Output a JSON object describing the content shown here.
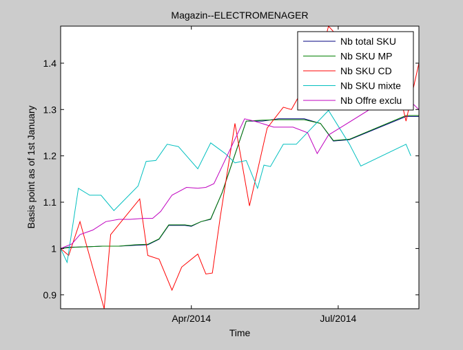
{
  "chart_data": {
    "type": "line",
    "title": "Magazin--ELECTROMENAGER",
    "xlabel": "Time",
    "ylabel": "Basis point as of 1st January",
    "ylim": [
      0.87,
      1.48
    ],
    "yticks": [
      0.9,
      1,
      1.1,
      1.2,
      1.3,
      1.4
    ],
    "ytick_labels": [
      "0.9",
      "1",
      "1.1",
      "1.2",
      "1.3",
      "1.4"
    ],
    "xlim": [
      "2014-01-10",
      "2014-08-20"
    ],
    "xticks": [
      {
        "date": "2014-04-01",
        "label": "Apr/2014"
      },
      {
        "date": "2014-07-01",
        "label": "Jul/2014"
      }
    ],
    "grid": false,
    "legend": "top-right",
    "series": [
      {
        "name": "Nb total SKU",
        "color": "#00007f",
        "points": [
          [
            "2014-01-10",
            1.0
          ],
          [
            "2014-01-15",
            1.003
          ],
          [
            "2014-01-20",
            1.003
          ],
          [
            "2014-01-28",
            1.004
          ],
          [
            "2014-02-05",
            1.005
          ],
          [
            "2014-02-15",
            1.005
          ],
          [
            "2014-02-25",
            1.007
          ],
          [
            "2014-03-05",
            1.008
          ],
          [
            "2014-03-12",
            1.02
          ],
          [
            "2014-03-18",
            1.05
          ],
          [
            "2014-03-28",
            1.05
          ],
          [
            "2014-04-01",
            1.048
          ],
          [
            "2014-04-07",
            1.058
          ],
          [
            "2014-04-13",
            1.063
          ],
          [
            "2014-04-20",
            1.12
          ],
          [
            "2014-05-05",
            1.275
          ],
          [
            "2014-05-15",
            1.275
          ],
          [
            "2014-05-25",
            1.28
          ],
          [
            "2014-06-10",
            1.28
          ],
          [
            "2014-06-20",
            1.27
          ],
          [
            "2014-06-28",
            1.232
          ],
          [
            "2014-07-08",
            1.235
          ],
          [
            "2014-08-12",
            1.285
          ],
          [
            "2014-08-20",
            1.285
          ]
        ]
      },
      {
        "name": "Nb SKU MP",
        "color": "#007f00",
        "points": [
          [
            "2014-01-10",
            1.0
          ],
          [
            "2014-01-15",
            1.002
          ],
          [
            "2014-01-20",
            1.003
          ],
          [
            "2014-01-28",
            1.004
          ],
          [
            "2014-02-05",
            1.005
          ],
          [
            "2014-02-15",
            1.005
          ],
          [
            "2014-02-25",
            1.008
          ],
          [
            "2014-03-05",
            1.009
          ],
          [
            "2014-03-12",
            1.021
          ],
          [
            "2014-03-18",
            1.051
          ],
          [
            "2014-03-28",
            1.051
          ],
          [
            "2014-04-01",
            1.049
          ],
          [
            "2014-04-07",
            1.058
          ],
          [
            "2014-04-13",
            1.064
          ],
          [
            "2014-04-20",
            1.12
          ],
          [
            "2014-05-05",
            1.275
          ],
          [
            "2014-05-15",
            1.277
          ],
          [
            "2014-05-25",
            1.278
          ],
          [
            "2014-06-10",
            1.278
          ],
          [
            "2014-06-20",
            1.27
          ],
          [
            "2014-06-28",
            1.233
          ],
          [
            "2014-07-08",
            1.236
          ],
          [
            "2014-08-12",
            1.287
          ],
          [
            "2014-08-20",
            1.287
          ]
        ]
      },
      {
        "name": "Nb SKU CD",
        "color": "#ff0000",
        "points": [
          [
            "2014-01-10",
            1.0
          ],
          [
            "2014-01-15",
            0.985
          ],
          [
            "2014-01-22",
            1.058
          ],
          [
            "2014-02-06",
            0.87
          ],
          [
            "2014-02-10",
            1.03
          ],
          [
            "2014-02-28",
            1.107
          ],
          [
            "2014-03-05",
            0.985
          ],
          [
            "2014-03-12",
            0.977
          ],
          [
            "2014-03-20",
            0.91
          ],
          [
            "2014-03-26",
            0.96
          ],
          [
            "2014-04-05",
            0.988
          ],
          [
            "2014-04-10",
            0.945
          ],
          [
            "2014-04-14",
            0.947
          ],
          [
            "2014-04-19",
            1.07
          ],
          [
            "2014-04-28",
            1.27
          ],
          [
            "2014-05-07",
            1.092
          ],
          [
            "2014-05-18",
            1.26
          ],
          [
            "2014-05-28",
            1.305
          ],
          [
            "2014-06-02",
            1.3
          ],
          [
            "2014-06-10",
            1.35
          ],
          [
            "2014-06-18",
            1.385
          ],
          [
            "2014-06-25",
            1.48
          ],
          [
            "2014-07-08",
            1.43
          ],
          [
            "2014-08-05",
            1.38
          ],
          [
            "2014-08-12",
            1.275
          ],
          [
            "2014-08-20",
            1.4
          ]
        ]
      },
      {
        "name": "Nb SKU mixte",
        "color": "#00bfbf",
        "points": [
          [
            "2014-01-10",
            1.0
          ],
          [
            "2014-01-14",
            0.97
          ],
          [
            "2014-01-21",
            1.13
          ],
          [
            "2014-01-28",
            1.115
          ],
          [
            "2014-02-04",
            1.115
          ],
          [
            "2014-02-12",
            1.082
          ],
          [
            "2014-02-27",
            1.135
          ],
          [
            "2014-03-04",
            1.188
          ],
          [
            "2014-03-10",
            1.19
          ],
          [
            "2014-03-17",
            1.225
          ],
          [
            "2014-03-24",
            1.22
          ],
          [
            "2014-04-05",
            1.172
          ],
          [
            "2014-04-13",
            1.228
          ],
          [
            "2014-04-22",
            1.205
          ],
          [
            "2014-04-28",
            1.185
          ],
          [
            "2014-05-05",
            1.19
          ],
          [
            "2014-05-12",
            1.13
          ],
          [
            "2014-05-16",
            1.18
          ],
          [
            "2014-05-20",
            1.177
          ],
          [
            "2014-05-28",
            1.225
          ],
          [
            "2014-06-05",
            1.225
          ],
          [
            "2014-06-25",
            1.298
          ],
          [
            "2014-07-08",
            1.225
          ],
          [
            "2014-07-15",
            1.178
          ],
          [
            "2014-08-12",
            1.225
          ],
          [
            "2014-08-15",
            1.2
          ]
        ]
      },
      {
        "name": "Nb Offre exclu",
        "color": "#bf00bf",
        "points": [
          [
            "2014-01-10",
            1.0
          ],
          [
            "2014-01-17",
            1.01
          ],
          [
            "2014-01-22",
            1.03
          ],
          [
            "2014-01-30",
            1.04
          ],
          [
            "2014-02-07",
            1.058
          ],
          [
            "2014-02-15",
            1.063
          ],
          [
            "2014-02-22",
            1.063
          ],
          [
            "2014-03-02",
            1.065
          ],
          [
            "2014-03-08",
            1.065
          ],
          [
            "2014-03-13",
            1.08
          ],
          [
            "2014-03-20",
            1.115
          ],
          [
            "2014-03-29",
            1.132
          ],
          [
            "2014-04-05",
            1.13
          ],
          [
            "2014-04-10",
            1.132
          ],
          [
            "2014-04-15",
            1.14
          ],
          [
            "2014-05-04",
            1.28
          ],
          [
            "2014-05-10",
            1.275
          ],
          [
            "2014-05-22",
            1.262
          ],
          [
            "2014-06-03",
            1.262
          ],
          [
            "2014-06-12",
            1.25
          ],
          [
            "2014-06-18",
            1.205
          ],
          [
            "2014-06-25",
            1.245
          ],
          [
            "2014-07-02",
            1.26
          ],
          [
            "2014-08-01",
            1.325
          ],
          [
            "2014-08-10",
            1.33
          ],
          [
            "2014-08-14",
            1.32
          ],
          [
            "2014-08-20",
            1.3
          ]
        ]
      }
    ]
  }
}
